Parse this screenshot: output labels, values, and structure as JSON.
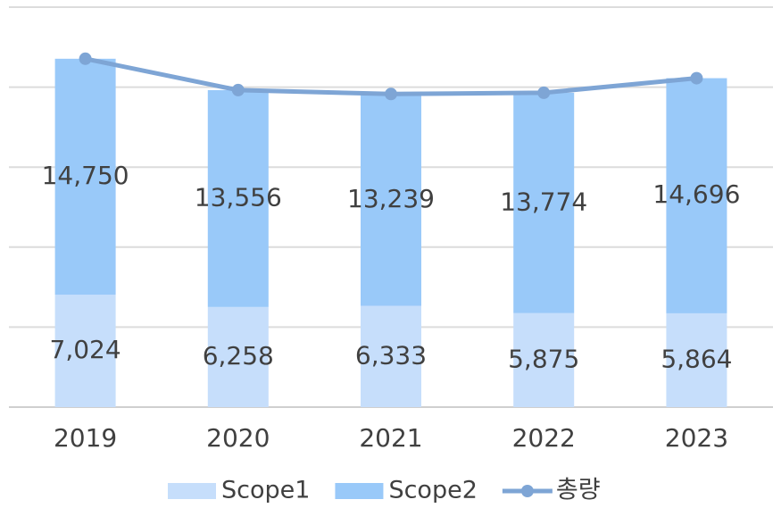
{
  "chart_data": {
    "type": "stacked_bar_line",
    "categories": [
      "2019",
      "2020",
      "2021",
      "2022",
      "2023"
    ],
    "series": [
      {
        "name": "Scope1",
        "color": "#c6defb",
        "values": [
          7024,
          6258,
          6333,
          5875,
          5864
        ],
        "value_labels": [
          "7,024",
          "6,258",
          "6,333",
          "5,875",
          "5,864"
        ]
      },
      {
        "name": "Scope2",
        "color": "#99c9f9",
        "values": [
          14750,
          13556,
          13239,
          13774,
          14696
        ],
        "value_labels": [
          "14,750",
          "13,556",
          "13,239",
          "13,774",
          "14,696"
        ]
      },
      {
        "name": "총량",
        "color": "#7ea5d5",
        "type": "line",
        "values": [
          21774,
          19814,
          19572,
          19649,
          20560
        ]
      }
    ],
    "ylim": [
      0,
      25000
    ],
    "yticks": [
      0,
      5000,
      10000,
      15000,
      20000,
      25000
    ],
    "grid": true,
    "legend": "bottom"
  }
}
